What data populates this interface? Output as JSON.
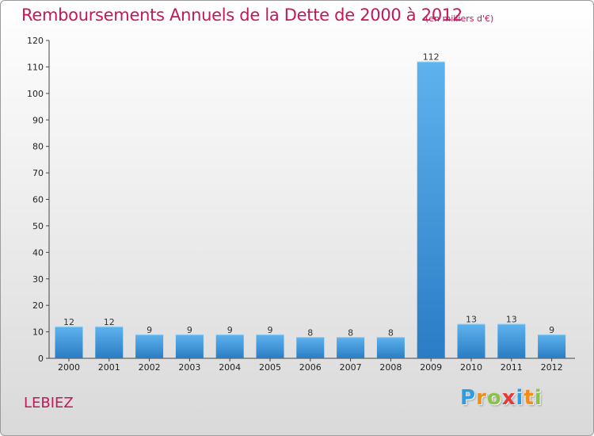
{
  "chart_data": {
    "type": "bar",
    "title": "Remboursements Annuels de la Dette de 2000 à 2012",
    "subtitle": "(en milliers d'€)",
    "categories": [
      "2000",
      "2001",
      "2002",
      "2003",
      "2004",
      "2005",
      "2006",
      "2007",
      "2008",
      "2009",
      "2010",
      "2011",
      "2012"
    ],
    "values": [
      12,
      12,
      9,
      9,
      9,
      9,
      8,
      8,
      8,
      112,
      13,
      13,
      9
    ],
    "ylim": [
      0,
      120
    ],
    "yticks": [
      0,
      10,
      20,
      30,
      40,
      50,
      60,
      70,
      80,
      90,
      100,
      110,
      120
    ],
    "xlabel": "",
    "ylabel": "",
    "grid": false,
    "bar_color": "#3a8fd6"
  },
  "footer": {
    "place": "LEBIEZ",
    "logo_letters": [
      {
        "char": "P",
        "color": "#2f9be0"
      },
      {
        "char": "r",
        "color": "#f08c1a"
      },
      {
        "char": "o",
        "color": "#8bc34a"
      },
      {
        "char": "x",
        "color": "#e53935"
      },
      {
        "char": "i",
        "color": "#2f9be0"
      },
      {
        "char": "t",
        "color": "#f08c1a"
      },
      {
        "char": "i",
        "color": "#8bc34a"
      }
    ]
  }
}
